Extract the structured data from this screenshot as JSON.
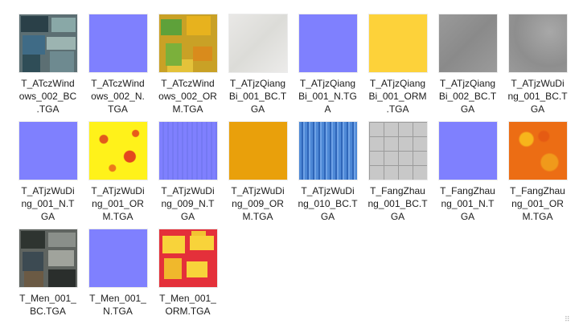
{
  "files": [
    {
      "name": "T_ATczWindows_002_BC.TGA",
      "label": "T_ATczWind\nows_002_BC\n.TGA",
      "thumb": "windows"
    },
    {
      "name": "T_ATczWindows_002_N.TGA",
      "label": "T_ATczWind\nows_002_N.\nTGA",
      "thumb": "normal"
    },
    {
      "name": "T_ATczWindows_002_ORM.TGA",
      "label": "T_ATczWind\nows_002_OR\nM.TGA",
      "thumb": "orm-mix"
    },
    {
      "name": "T_ATjzQiangBi_001_BC.TGA",
      "label": "T_ATjzQiang\nBi_001_BC.T\nGA",
      "thumb": "whitewall"
    },
    {
      "name": "T_ATjzQiangBi_001_N.TGA",
      "label": "T_ATjzQiang\nBi_001_N.TG\nA",
      "thumb": "normal"
    },
    {
      "name": "T_ATjzQiangBi_001_ORM.TGA",
      "label": "T_ATjzQiang\nBi_001_ORM\n.TGA",
      "thumb": "yellow"
    },
    {
      "name": "T_ATjzQiangBi_002_BC.TGA",
      "label": "T_ATjzQiang\nBi_002_BC.T\nGA",
      "thumb": "gray"
    },
    {
      "name": "T_ATjzWuDing_001_BC.TGA",
      "label": "T_ATjzWuDi\nng_001_BC.T\nGA",
      "thumb": "gray2"
    },
    {
      "name": "T_ATjzWuDing_001_N.TGA",
      "label": "T_ATjzWuDi\nng_001_N.T\nGA",
      "thumb": "normal"
    },
    {
      "name": "T_ATjzWuDing_001_ORM.TGA",
      "label": "T_ATjzWuDi\nng_001_OR\nM.TGA",
      "thumb": "yellow-red"
    },
    {
      "name": "T_ATjzWuDing_009_N.TGA",
      "label": "T_ATjzWuDi\nng_009_N.T\nGA",
      "thumb": "normal-stripe"
    },
    {
      "name": "T_ATjzWuDing_009_ORM.TGA",
      "label": "T_ATjzWuDi\nng_009_OR\nM.TGA",
      "thumb": "orange"
    },
    {
      "name": "T_ATjzWuDing_010_BC.TGA",
      "label": "T_ATjzWuDi\nng_010_BC.T\nGA",
      "thumb": "blue-stripe"
    },
    {
      "name": "T_FangZhaung_001_BC.TGA",
      "label": "T_FangZhau\nng_001_BC.T\nGA",
      "thumb": "tiles"
    },
    {
      "name": "T_FangZhaung_001_N.TGA",
      "label": "T_FangZhau\nng_001_N.T\nGA",
      "thumb": "normal"
    },
    {
      "name": "T_FangZhaung_001_ORM.TGA",
      "label": "T_FangZhau\nng_001_OR\nM.TGA",
      "thumb": "orange-red"
    },
    {
      "name": "T_Men_001_BC.TGA",
      "label": "T_Men_001_\nBC.TGA",
      "thumb": "doors"
    },
    {
      "name": "T_Men_001_N.TGA",
      "label": "T_Men_001_\nN.TGA",
      "thumb": "normal-grid"
    },
    {
      "name": "T_Men_001_ORM.TGA",
      "label": "T_Men_001_\nORM.TGA",
      "thumb": "red-yellow"
    }
  ],
  "colors": {
    "normal": "#7f80fe",
    "yellow": "#fdd23a",
    "orange": "#e9a00b",
    "red": "#e4303a"
  },
  "resize_grip": "⠿"
}
